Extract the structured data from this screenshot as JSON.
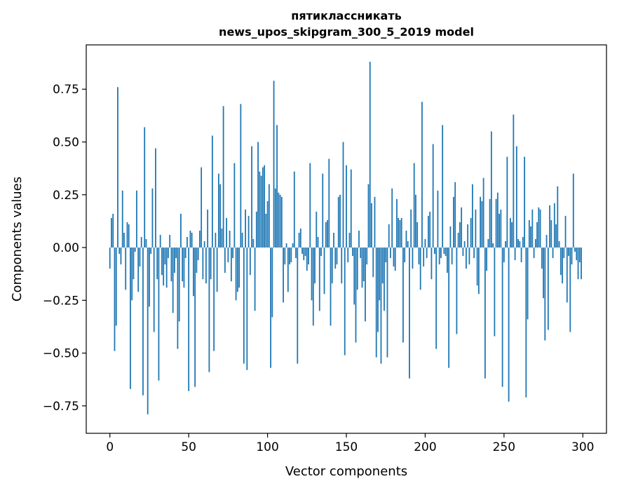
{
  "chart_data": {
    "type": "bar",
    "title": [
      "пятиклассникать",
      "news_upos_skipgram_300_5_2019 model"
    ],
    "xlabel": "Vector components",
    "ylabel": "Components values",
    "xlim": [
      -15,
      315
    ],
    "ylim": [
      -0.88,
      0.96
    ],
    "xticks": [
      0,
      50,
      100,
      150,
      200,
      250,
      300
    ],
    "yticks": [
      -0.75,
      -0.5,
      -0.25,
      0.0,
      0.25,
      0.5,
      0.75
    ],
    "ytick_labels": [
      "−0.75",
      "−0.50",
      "−0.25",
      "0.00",
      "0.25",
      "0.50",
      "0.75"
    ],
    "bar_color": "#1f77b4",
    "grid": false,
    "values": [
      -0.1,
      0.14,
      0.16,
      -0.49,
      -0.37,
      0.76,
      -0.03,
      -0.08,
      0.27,
      0.07,
      -0.2,
      0.12,
      0.11,
      -0.67,
      -0.25,
      -0.15,
      -0.02,
      0.27,
      -0.21,
      -0.09,
      0.05,
      -0.7,
      0.57,
      0.04,
      -0.79,
      -0.28,
      -0.03,
      0.28,
      -0.4,
      0.47,
      -0.15,
      -0.63,
      0.06,
      -0.13,
      -0.18,
      -0.08,
      -0.19,
      -0.05,
      0.06,
      -0.16,
      -0.31,
      -0.12,
      -0.05,
      -0.48,
      -0.35,
      0.16,
      -0.16,
      -0.19,
      -0.05,
      0.05,
      -0.68,
      0.08,
      0.07,
      -0.23,
      -0.66,
      -0.12,
      -0.06,
      0.08,
      0.38,
      -0.15,
      0.03,
      -0.17,
      0.18,
      -0.59,
      -0.15,
      0.53,
      -0.49,
      0.07,
      -0.21,
      0.35,
      0.3,
      0.09,
      0.67,
      -0.12,
      0.14,
      -0.07,
      0.08,
      -0.16,
      -0.05,
      0.4,
      -0.25,
      -0.21,
      -0.19,
      0.68,
      0.07,
      -0.55,
      0.18,
      -0.58,
      0.15,
      -0.13,
      0.48,
      0.04,
      -0.3,
      0.17,
      0.5,
      0.36,
      0.34,
      0.38,
      0.39,
      0.16,
      0.22,
      0.3,
      -0.57,
      -0.33,
      0.79,
      0.28,
      0.58,
      0.26,
      0.25,
      0.24,
      -0.26,
      -0.08,
      0.02,
      -0.21,
      -0.08,
      -0.07,
      0.02,
      0.36,
      -0.05,
      -0.55,
      0.07,
      0.09,
      -0.03,
      -0.06,
      -0.04,
      -0.11,
      -0.08,
      0.4,
      -0.25,
      -0.37,
      -0.17,
      0.17,
      0.05,
      -0.3,
      -0.04,
      0.35,
      -0.22,
      0.12,
      0.13,
      0.42,
      -0.37,
      -0.17,
      0.07,
      -0.1,
      -0.08,
      0.24,
      0.25,
      -0.17,
      0.5,
      -0.51,
      0.39,
      -0.07,
      0.07,
      0.37,
      -0.04,
      -0.27,
      -0.45,
      -0.2,
      0.08,
      -0.05,
      -0.19,
      -0.16,
      -0.35,
      -0.08,
      0.3,
      0.88,
      0.21,
      -0.14,
      0.24,
      -0.52,
      -0.4,
      -0.25,
      -0.55,
      -0.17,
      -0.3,
      -0.07,
      -0.52,
      0.11,
      -0.05,
      0.28,
      -0.09,
      -0.11,
      0.23,
      0.14,
      0.13,
      0.14,
      -0.45,
      -0.07,
      0.08,
      0.03,
      -0.62,
      0.18,
      -0.1,
      0.4,
      0.25,
      0.12,
      -0.08,
      -0.2,
      0.69,
      -0.09,
      0.04,
      -0.05,
      0.15,
      0.17,
      -0.15,
      0.49,
      -0.03,
      -0.48,
      0.27,
      -0.08,
      -0.05,
      0.58,
      -0.03,
      -0.04,
      -0.12,
      -0.57,
      0.1,
      -0.08,
      0.24,
      0.31,
      -0.41,
      0.07,
      0.12,
      0.19,
      -0.04,
      0.03,
      -0.1,
      0.11,
      -0.08,
      0.14,
      0.3,
      -0.05,
      0.18,
      -0.18,
      -0.22,
      0.24,
      0.22,
      0.33,
      -0.62,
      -0.11,
      0.04,
      0.23,
      0.55,
      0.02,
      -0.42,
      0.23,
      0.26,
      0.16,
      0.18,
      -0.66,
      -0.07,
      0.03,
      0.43,
      -0.73,
      0.14,
      0.12,
      0.63,
      -0.06,
      0.48,
      0.04,
      0.03,
      -0.07,
      0.05,
      0.43,
      -0.71,
      -0.34,
      0.13,
      0.1,
      0.18,
      -0.05,
      0.04,
      0.12,
      0.19,
      0.18,
      -0.1,
      -0.24,
      -0.44,
      0.06,
      -0.39,
      0.2,
      0.13,
      -0.05,
      0.21,
      0.11,
      0.29,
      0.03,
      -0.13,
      -0.17,
      -0.05,
      0.15,
      -0.26,
      -0.04,
      -0.4,
      -0.08,
      0.35,
      -0.02,
      -0.06,
      -0.15,
      -0.07,
      -0.15
    ]
  }
}
